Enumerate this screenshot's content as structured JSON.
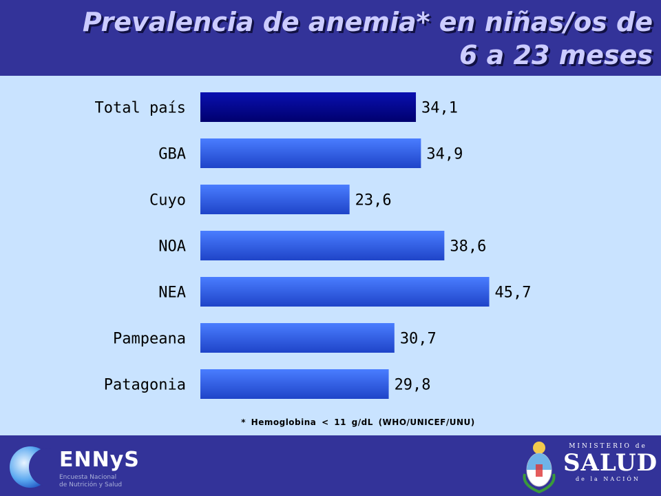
{
  "header": {
    "title_line1": "Prevalencia de anemia* en niñas/os de",
    "title_line2": "6 a 23 meses"
  },
  "chart_data": {
    "type": "bar",
    "orientation": "horizontal",
    "categories": [
      "Total país",
      "GBA",
      "Cuyo",
      "NOA",
      "NEA",
      "Pampeana",
      "Patagonia"
    ],
    "values": [
      34.1,
      34.9,
      23.6,
      38.6,
      45.7,
      30.7,
      29.8
    ],
    "value_labels": [
      "34,1",
      "34,9",
      "23,6",
      "38,6",
      "45,7",
      "30,7",
      "29,8"
    ],
    "xlim": [
      0,
      50
    ],
    "grid": false,
    "legend": "none",
    "colors": {
      "highlight": "#00008b",
      "bar": "#3366ff"
    }
  },
  "footnote": "* Hemoglobina < 11 g/dL (WHO/UNICEF/UNU)",
  "footer": {
    "ennys_logo": "ENNyS",
    "ennys_sub_line1": "Encuesta Nacional",
    "ennys_sub_line2": "de Nutrición y Salud",
    "ministry_top": "MINISTERIO de",
    "ministry_name": "SALUD",
    "ministry_bottom": "de la NACIÓN"
  }
}
